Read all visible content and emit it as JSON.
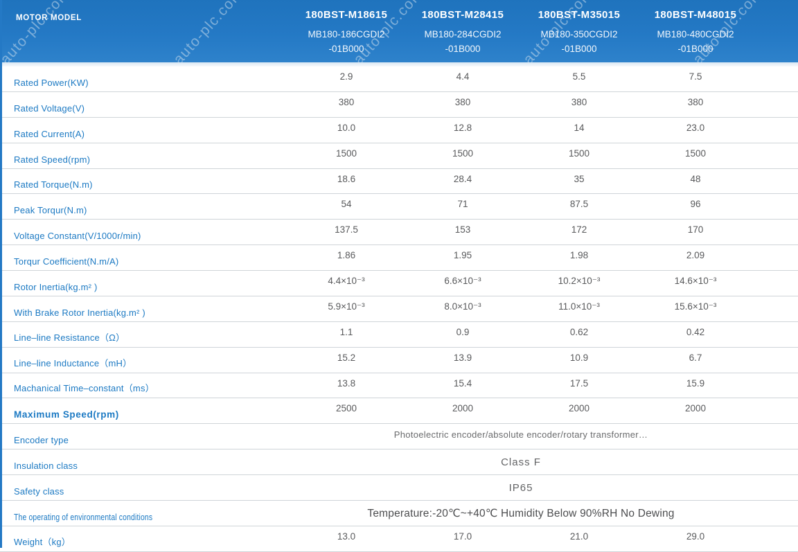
{
  "watermark": "auto-plc.com",
  "colors": {
    "header_bg": "#2479c5",
    "label_blue": "#1b79c3",
    "value_gray": "#58595b",
    "separator_gray": "#cfd4d8"
  },
  "header": {
    "row_label": "MOTOR MODEL",
    "columns": [
      {
        "model": "180BST-M18615",
        "sub1": "MB180-186CGDI2",
        "sub2": "-01B000"
      },
      {
        "model": "180BST-M28415",
        "sub1": "MB180-284CGDI2",
        "sub2": "-01B000"
      },
      {
        "model": "180BST-M35015",
        "sub1": "MB180-350CGDI2",
        "sub2": "-01B000"
      },
      {
        "model": "180BST-M48015",
        "sub1": "MB180-480CGDI2",
        "sub2": "-01B000"
      }
    ]
  },
  "rows": [
    {
      "label": "Rated Power(KW)",
      "values": [
        "2.9",
        "4.4",
        "5.5",
        "7.5"
      ]
    },
    {
      "label": "Rated Voltage(V)",
      "values": [
        "380",
        "380",
        "380",
        "380"
      ]
    },
    {
      "label": "Rated Current(A)",
      "values": [
        "10.0",
        "12.8",
        "14",
        "23.0"
      ]
    },
    {
      "label": "Rated Speed(rpm)",
      "values": [
        "1500",
        "1500",
        "1500",
        "1500"
      ]
    },
    {
      "label": "Rated Torque(N.m)",
      "values": [
        "18.6",
        "28.4",
        "35",
        "48"
      ]
    },
    {
      "label": "Peak Torqur(N.m)",
      "values": [
        "54",
        "71",
        "87.5",
        "96"
      ]
    },
    {
      "label": "Voltage Constant(V/1000r/min)",
      "values": [
        "137.5",
        "153",
        "172",
        "170"
      ]
    },
    {
      "label": "Torqur Coefficient(N.m/A)",
      "values": [
        "1.86",
        "1.95",
        "1.98",
        "2.09"
      ]
    },
    {
      "label": "Rotor Inertia(kg.m² )",
      "values": [
        "4.4×10⁻³",
        "6.6×10⁻³",
        "10.2×10⁻³",
        "14.6×10⁻³"
      ]
    },
    {
      "label": "With Brake Rotor Inertia(kg.m² )",
      "values": [
        "5.9×10⁻³",
        "8.0×10⁻³",
        "11.0×10⁻³",
        "15.6×10⁻³"
      ]
    },
    {
      "label": "Line–line Resistance（Ω）",
      "values": [
        "1.1",
        "0.9",
        "0.62",
        "0.42"
      ]
    },
    {
      "label": "Line–line Inductance（mH）",
      "values": [
        "15.2",
        "13.9",
        "10.9",
        "6.7"
      ]
    },
    {
      "label": "Machanical Time–constant（ms）",
      "values": [
        "13.8",
        "15.4",
        "17.5",
        "15.9"
      ]
    },
    {
      "label": "Maximum Speed(rpm)",
      "values": [
        "2500",
        "2000",
        "2000",
        "2000"
      ]
    },
    {
      "label": "Encoder type",
      "span": true,
      "value": "Photoelectric encoder/absolute encoder/rotary transformer…"
    },
    {
      "label": "Insulation class",
      "span": true,
      "value": "Class F"
    },
    {
      "label": "Safety class",
      "span": true,
      "value": "IP65"
    },
    {
      "label": "The operating of environmental conditions",
      "span": true,
      "value": "Temperature:-20℃~+40℃  Humidity Below 90%RH No Dewing"
    },
    {
      "label": "Weight（kg）",
      "values": [
        "13.0",
        "17.0",
        "21.0",
        "29.0"
      ]
    }
  ]
}
